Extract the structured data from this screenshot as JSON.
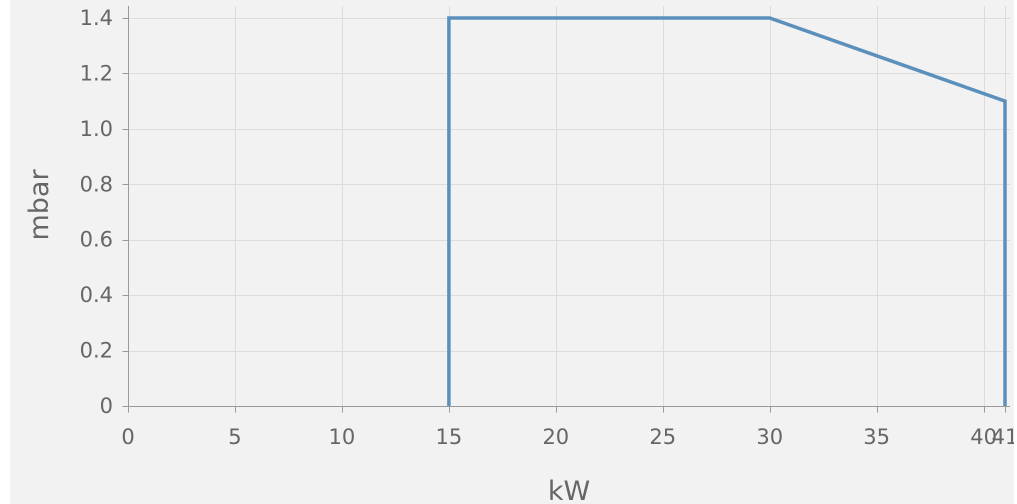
{
  "chart_data": {
    "type": "line",
    "title": "",
    "xlabel": "kW",
    "ylabel": "mbar",
    "xlim": [
      0,
      41
    ],
    "ylim": [
      0,
      1.4
    ],
    "x_ticks": [
      0,
      5,
      10,
      15,
      20,
      25,
      30,
      35,
      40,
      41
    ],
    "y_ticks": [
      0,
      0.2,
      0.4,
      0.6,
      0.8,
      1.0,
      1.2,
      1.4
    ],
    "x_tick_labels": [
      "0",
      "5",
      "10",
      "15",
      "20",
      "25",
      "30",
      "35",
      "40",
      "41"
    ],
    "y_tick_labels": [
      "0",
      "0.2",
      "0.4",
      "0.6",
      "0.8",
      "1.0",
      "1.2",
      "1.4"
    ],
    "grid": true,
    "series": [
      {
        "color": "#5b8fbc",
        "x": [
          15,
          15,
          30,
          41,
          41
        ],
        "y": [
          0,
          1.4,
          1.4,
          1.1,
          0
        ]
      }
    ]
  }
}
